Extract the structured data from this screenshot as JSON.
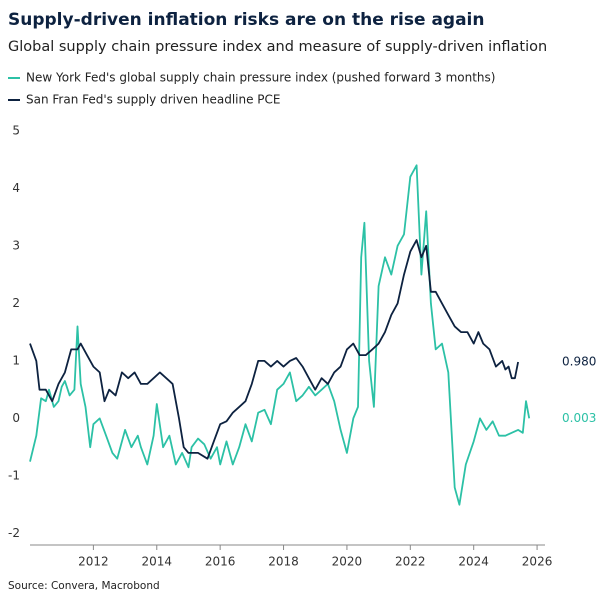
{
  "chart_data": {
    "type": "line",
    "title": "Supply-driven inflation risks are on the rise again",
    "subtitle": "Global supply chain pressure index and measure of supply-driven inflation",
    "source": "Source: Convera, Macrobond",
    "xlim": [
      2010,
      2026.25
    ],
    "xticks": [
      2012,
      2014,
      2016,
      2018,
      2020,
      2022,
      2024,
      2026
    ],
    "ylim": [
      -2.2,
      5.1
    ],
    "yticks": [
      -2,
      -1,
      0,
      1,
      2,
      3,
      4,
      5
    ],
    "series": [
      {
        "name": "New York Fed's global supply chain pressure index (pushed forward 3 months)",
        "color": "#2cc1a6",
        "x": [
          2010.0,
          2010.2,
          2010.35,
          2010.5,
          2010.6,
          2010.75,
          2010.9,
          2011.0,
          2011.1,
          2011.25,
          2011.4,
          2011.5,
          2011.6,
          2011.75,
          2011.9,
          2012.0,
          2012.2,
          2012.4,
          2012.6,
          2012.75,
          2013.0,
          2013.2,
          2013.4,
          2013.5,
          2013.7,
          2013.9,
          2014.0,
          2014.2,
          2014.4,
          2014.6,
          2014.8,
          2015.0,
          2015.1,
          2015.3,
          2015.5,
          2015.7,
          2015.9,
          2016.0,
          2016.2,
          2016.4,
          2016.6,
          2016.8,
          2017.0,
          2017.2,
          2017.4,
          2017.6,
          2017.8,
          2018.0,
          2018.2,
          2018.4,
          2018.6,
          2018.8,
          2019.0,
          2019.2,
          2019.4,
          2019.6,
          2019.8,
          2020.0,
          2020.2,
          2020.35,
          2020.45,
          2020.55,
          2020.7,
          2020.85,
          2021.0,
          2021.2,
          2021.4,
          2021.6,
          2021.8,
          2022.0,
          2022.2,
          2022.35,
          2022.5,
          2022.65,
          2022.8,
          2023.0,
          2023.2,
          2023.4,
          2023.55,
          2023.75,
          2024.0,
          2024.2,
          2024.4,
          2024.6,
          2024.8,
          2025.0,
          2025.2,
          2025.4,
          2025.55,
          2025.65,
          2025.75
        ],
        "values": [
          -0.75,
          -0.3,
          0.35,
          0.3,
          0.5,
          0.2,
          0.3,
          0.55,
          0.65,
          0.4,
          0.5,
          1.6,
          0.6,
          0.2,
          -0.5,
          -0.1,
          0.0,
          -0.3,
          -0.6,
          -0.7,
          -0.2,
          -0.5,
          -0.3,
          -0.5,
          -0.8,
          -0.3,
          0.25,
          -0.5,
          -0.3,
          -0.8,
          -0.6,
          -0.85,
          -0.5,
          -0.35,
          -0.45,
          -0.7,
          -0.5,
          -0.8,
          -0.4,
          -0.8,
          -0.5,
          -0.1,
          -0.4,
          0.1,
          0.15,
          -0.1,
          0.5,
          0.6,
          0.8,
          0.3,
          0.4,
          0.55,
          0.4,
          0.5,
          0.6,
          0.3,
          -0.2,
          -0.6,
          0.0,
          0.2,
          2.8,
          3.4,
          1.0,
          0.2,
          2.3,
          2.8,
          2.5,
          3.0,
          3.2,
          4.2,
          4.4,
          2.5,
          3.6,
          2.0,
          1.2,
          1.3,
          0.8,
          -1.2,
          -1.5,
          -0.8,
          -0.4,
          0.0,
          -0.2,
          -0.05,
          -0.3,
          -0.3,
          -0.25,
          -0.2,
          -0.25,
          0.3,
          0.003
        ],
        "value_labels": [
          null,
          null,
          null,
          null,
          null,
          null,
          null,
          null,
          null,
          null,
          null,
          null,
          null,
          null,
          null,
          null,
          null,
          null,
          null,
          null,
          null,
          null,
          null,
          null,
          null,
          null,
          null,
          null,
          null,
          null,
          null,
          null,
          null,
          null,
          null,
          null,
          null,
          null,
          null,
          null,
          null,
          null,
          null,
          null,
          null,
          null,
          null,
          null,
          null,
          null,
          null,
          null,
          null,
          null,
          null,
          null,
          null,
          null,
          null,
          null,
          null,
          null,
          null,
          null,
          null,
          null,
          null,
          null,
          null,
          null,
          null,
          null,
          null,
          null,
          null,
          null,
          null,
          null,
          null,
          null,
          null,
          null,
          null,
          null,
          null,
          null,
          null,
          null,
          null,
          null,
          "0.003"
        ]
      },
      {
        "name": "San Fran Fed's supply driven headline PCE",
        "color": "#0d2240",
        "x": [
          2010.0,
          2010.2,
          2010.3,
          2010.5,
          2010.7,
          2010.9,
          2011.1,
          2011.3,
          2011.5,
          2011.6,
          2011.8,
          2012.0,
          2012.2,
          2012.35,
          2012.5,
          2012.7,
          2012.9,
          2013.1,
          2013.3,
          2013.5,
          2013.7,
          2013.9,
          2014.1,
          2014.3,
          2014.5,
          2014.7,
          2014.85,
          2015.0,
          2015.3,
          2015.6,
          2015.8,
          2016.0,
          2016.2,
          2016.4,
          2016.6,
          2016.8,
          2017.0,
          2017.2,
          2017.4,
          2017.6,
          2017.8,
          2018.0,
          2018.2,
          2018.4,
          2018.6,
          2018.8,
          2019.0,
          2019.2,
          2019.4,
          2019.6,
          2019.8,
          2020.0,
          2020.2,
          2020.4,
          2020.6,
          2020.8,
          2021.0,
          2021.2,
          2021.4,
          2021.6,
          2021.8,
          2022.0,
          2022.2,
          2022.35,
          2022.5,
          2022.65,
          2022.8,
          2023.0,
          2023.2,
          2023.4,
          2023.6,
          2023.8,
          2024.0,
          2024.15,
          2024.3,
          2024.5,
          2024.7,
          2024.9,
          2025.0,
          2025.1,
          2025.2,
          2025.3,
          2025.4
        ],
        "values": [
          1.3,
          1.0,
          0.5,
          0.5,
          0.3,
          0.6,
          0.8,
          1.2,
          1.2,
          1.3,
          1.1,
          0.9,
          0.8,
          0.3,
          0.5,
          0.4,
          0.8,
          0.7,
          0.8,
          0.6,
          0.6,
          0.7,
          0.8,
          0.7,
          0.6,
          0.0,
          -0.5,
          -0.6,
          -0.6,
          -0.7,
          -0.4,
          -0.1,
          -0.05,
          0.1,
          0.2,
          0.3,
          0.6,
          1.0,
          1.0,
          0.9,
          1.0,
          0.9,
          1.0,
          1.05,
          0.9,
          0.7,
          0.5,
          0.7,
          0.6,
          0.8,
          0.9,
          1.2,
          1.3,
          1.1,
          1.1,
          1.2,
          1.3,
          1.5,
          1.8,
          2.0,
          2.5,
          2.9,
          3.1,
          2.8,
          3.0,
          2.2,
          2.2,
          2.0,
          1.8,
          1.6,
          1.5,
          1.5,
          1.3,
          1.5,
          1.3,
          1.2,
          0.9,
          1.0,
          0.85,
          0.9,
          0.7,
          0.7,
          0.98
        ],
        "value_labels": [
          null,
          null,
          null,
          null,
          null,
          null,
          null,
          null,
          null,
          null,
          null,
          null,
          null,
          null,
          null,
          null,
          null,
          null,
          null,
          null,
          null,
          null,
          null,
          null,
          null,
          null,
          null,
          null,
          null,
          null,
          null,
          null,
          null,
          null,
          null,
          null,
          null,
          null,
          null,
          null,
          null,
          null,
          null,
          null,
          null,
          null,
          null,
          null,
          null,
          null,
          null,
          null,
          null,
          null,
          null,
          null,
          null,
          null,
          null,
          null,
          null,
          null,
          null,
          null,
          null,
          null,
          null,
          null,
          null,
          null,
          null,
          null,
          null,
          null,
          null,
          null,
          null,
          null,
          null,
          null,
          null,
          null,
          "0.980"
        ]
      }
    ]
  }
}
